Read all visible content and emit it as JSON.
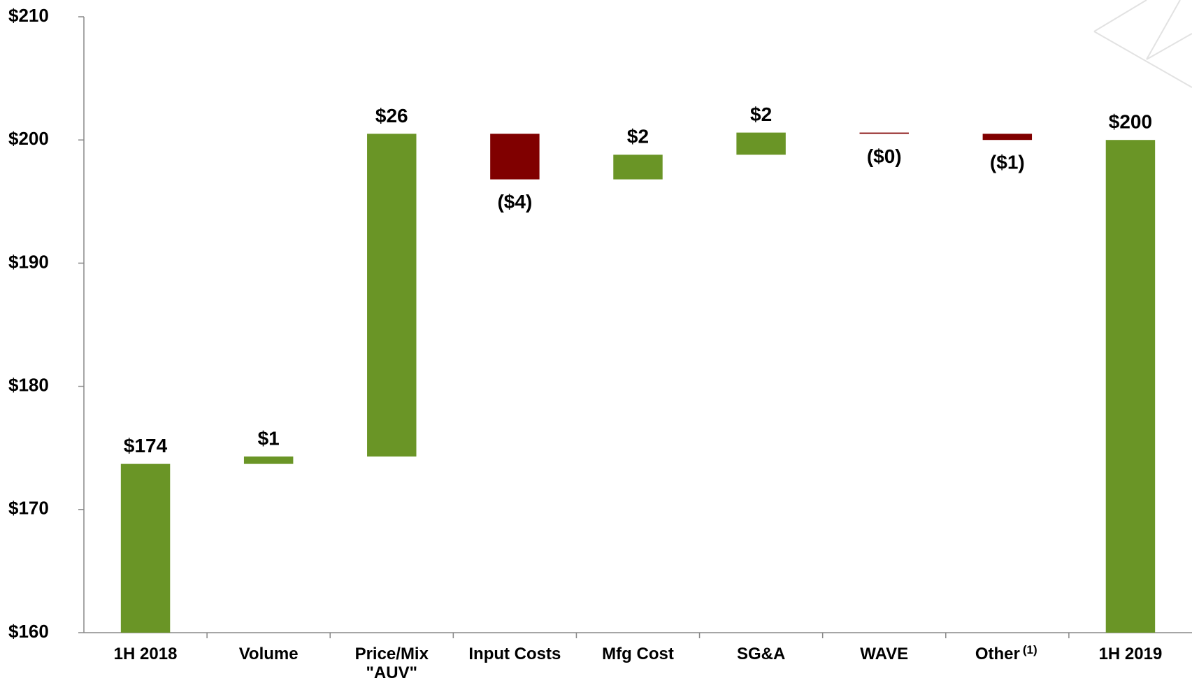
{
  "chart_data": {
    "type": "waterfall",
    "categories": [
      "1H 2018",
      "Volume",
      "Price/Mix\n\"AUV\"",
      "Input Costs",
      "Mfg Cost",
      "SG&A",
      "WAVE",
      "Other",
      "1H 2019"
    ],
    "superscripts": [
      null,
      null,
      null,
      null,
      null,
      null,
      null,
      "(1)",
      null
    ],
    "measures": [
      "absolute",
      "relative",
      "relative",
      "relative",
      "relative",
      "relative",
      "relative",
      "relative",
      "absolute"
    ],
    "values": [
      173.7,
      0.6,
      26.2,
      -3.7,
      2.0,
      1.8,
      -0.1,
      -0.5,
      200.0
    ],
    "value_labels": [
      "$174",
      "$1",
      "$26",
      "($4)",
      "$2",
      "$2",
      "($0)",
      "($1)",
      "$200"
    ],
    "increase_color": "#6a9526",
    "decrease_color": "#800000",
    "ylim": [
      160,
      210
    ],
    "yticks": [
      {
        "value": 160,
        "label": "$160"
      },
      {
        "value": 170,
        "label": "$170"
      },
      {
        "value": 180,
        "label": "$180"
      },
      {
        "value": 190,
        "label": "$190"
      },
      {
        "value": 200,
        "label": "$200"
      },
      {
        "value": 210,
        "label": "$210"
      }
    ],
    "grid": false
  }
}
